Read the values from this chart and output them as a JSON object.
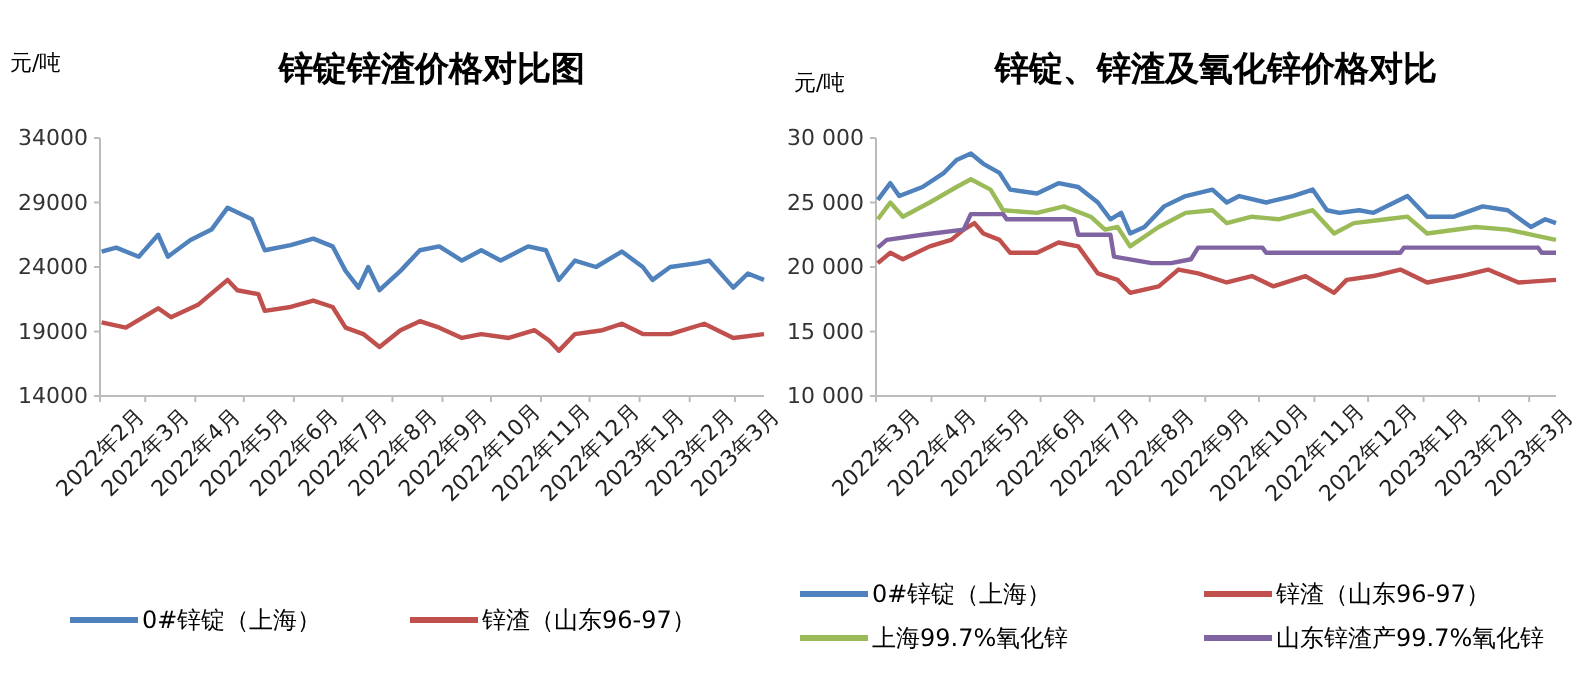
{
  "chart_data": [
    {
      "type": "line",
      "title": "锌锭锌渣价格对比图",
      "ylabel": "元/吨",
      "legend": "bottom",
      "ylim": [
        14000,
        34000
      ],
      "yticks": [
        14000,
        19000,
        24000,
        29000,
        34000
      ],
      "xlim": [
        "2022-02-01",
        "2023-03-19"
      ],
      "xticks": [
        {
          "value": "2022-02",
          "label": "2022年2月"
        },
        {
          "value": "2022-03",
          "label": "2022年3月"
        },
        {
          "value": "2022-04",
          "label": "2022年4月"
        },
        {
          "value": "2022-05",
          "label": "2022年5月"
        },
        {
          "value": "2022-06",
          "label": "2022年6月"
        },
        {
          "value": "2022-07",
          "label": "2022年7月"
        },
        {
          "value": "2022-08",
          "label": "2022年8月"
        },
        {
          "value": "2022-09",
          "label": "2022年9月"
        },
        {
          "value": "2022-10",
          "label": "2022年10月"
        },
        {
          "value": "2022-11",
          "label": "2022年11月"
        },
        {
          "value": "2022-12",
          "label": "2022年12月"
        },
        {
          "value": "2023-01",
          "label": "2023年1月"
        },
        {
          "value": "2023-02",
          "label": "2023年2月"
        },
        {
          "value": "2023-03",
          "label": "2023年3月"
        }
      ],
      "series": [
        {
          "name": "0#锌锭（上海）",
          "color": "#4f81bd",
          "x": [
            "2022-02-02",
            "2022-02-11",
            "2022-02-25",
            "2022-03-09",
            "2022-03-15",
            "2022-03-29",
            "2022-04-11",
            "2022-04-21",
            "2022-05-06",
            "2022-05-14",
            "2022-05-30",
            "2022-06-13",
            "2022-06-25",
            "2022-07-03",
            "2022-07-11",
            "2022-07-17",
            "2022-07-24",
            "2022-08-06",
            "2022-08-18",
            "2022-08-30",
            "2022-09-13",
            "2022-09-25",
            "2022-10-07",
            "2022-10-24",
            "2022-11-04",
            "2022-11-12",
            "2022-11-22",
            "2022-12-05",
            "2022-12-21",
            "2023-01-03",
            "2023-01-09",
            "2023-01-20",
            "2023-02-06",
            "2023-02-13",
            "2023-02-28",
            "2023-03-09",
            "2023-03-19"
          ],
          "values": [
            25200,
            25500,
            24800,
            26500,
            24800,
            26100,
            26900,
            28600,
            27700,
            25300,
            25700,
            26200,
            25600,
            23700,
            22400,
            24000,
            22200,
            23700,
            25300,
            25600,
            24500,
            25300,
            24500,
            25600,
            25300,
            23000,
            24500,
            24000,
            25200,
            24000,
            23000,
            24000,
            24300,
            24500,
            22400,
            23500,
            23000
          ]
        },
        {
          "name": "锌渣（山东96-97）",
          "color": "#c0504d",
          "x": [
            "2022-02-02",
            "2022-02-17",
            "2022-03-09",
            "2022-03-17",
            "2022-04-03",
            "2022-04-21",
            "2022-04-27",
            "2022-05-10",
            "2022-05-14",
            "2022-05-30",
            "2022-06-13",
            "2022-06-25",
            "2022-07-03",
            "2022-07-14",
            "2022-07-24",
            "2022-08-06",
            "2022-08-18",
            "2022-08-30",
            "2022-09-13",
            "2022-09-25",
            "2022-10-12",
            "2022-10-28",
            "2022-11-06",
            "2022-11-12",
            "2022-11-22",
            "2022-12-09",
            "2022-12-21",
            "2023-01-03",
            "2023-01-20",
            "2023-02-10",
            "2023-02-28",
            "2023-03-19"
          ],
          "values": [
            19700,
            19300,
            20800,
            20100,
            21100,
            23000,
            22200,
            21900,
            20600,
            20900,
            21400,
            20900,
            19300,
            18800,
            17800,
            19100,
            19800,
            19300,
            18500,
            18800,
            18500,
            19100,
            18300,
            17500,
            18800,
            19100,
            19600,
            18800,
            18800,
            19600,
            18500,
            18800
          ]
        }
      ]
    },
    {
      "type": "line",
      "title": "锌锭、锌渣及氧化锌价格对比",
      "ylabel": "元/吨",
      "legend": "bottom",
      "ylim": [
        10000,
        30000
      ],
      "yticks": [
        {
          "value": 10000,
          "label": "10 000"
        },
        {
          "value": 15000,
          "label": "15 000"
        },
        {
          "value": 20000,
          "label": "20 000"
        },
        {
          "value": 25000,
          "label": "25 000"
        },
        {
          "value": 30000,
          "label": "30 000"
        }
      ],
      "xlim": [
        "2022-03-01",
        "2023-03-16"
      ],
      "xticks": [
        {
          "value": "2022-03",
          "label": "2022年3月"
        },
        {
          "value": "2022-04",
          "label": "2022年4月"
        },
        {
          "value": "2022-05",
          "label": "2022年5月"
        },
        {
          "value": "2022-06",
          "label": "2022年6月"
        },
        {
          "value": "2022-07",
          "label": "2022年7月"
        },
        {
          "value": "2022-08",
          "label": "2022年8月"
        },
        {
          "value": "2022-09",
          "label": "2022年9月"
        },
        {
          "value": "2022-10",
          "label": "2022年10月"
        },
        {
          "value": "2022-11",
          "label": "2022年11月"
        },
        {
          "value": "2022-12",
          "label": "2022年12月"
        },
        {
          "value": "2023-01",
          "label": "2023年1月"
        },
        {
          "value": "2023-02",
          "label": "2023年2月"
        },
        {
          "value": "2023-03",
          "label": "2023年3月"
        }
      ],
      "series": [
        {
          "name": "0#锌锭（上海）",
          "color": "#4f81bd",
          "x": [
            "2022-03-02",
            "2022-03-09",
            "2022-03-14",
            "2022-03-27",
            "2022-04-08",
            "2022-04-15",
            "2022-04-23",
            "2022-04-30",
            "2022-05-09",
            "2022-05-15",
            "2022-05-30",
            "2022-06-11",
            "2022-06-22",
            "2022-07-03",
            "2022-07-10",
            "2022-07-16",
            "2022-07-21",
            "2022-07-29",
            "2022-08-09",
            "2022-08-21",
            "2022-09-05",
            "2022-09-13",
            "2022-09-20",
            "2022-10-05",
            "2022-10-20",
            "2022-10-31",
            "2022-11-08",
            "2022-11-15",
            "2022-11-26",
            "2022-12-04",
            "2022-12-23",
            "2023-01-03",
            "2023-01-18",
            "2023-02-03",
            "2023-02-17",
            "2023-03-02",
            "2023-03-10",
            "2023-03-16"
          ],
          "values": [
            25200,
            26500,
            25500,
            26200,
            27300,
            28300,
            28800,
            28000,
            27300,
            26000,
            25700,
            26500,
            26200,
            25000,
            23700,
            24200,
            22600,
            23100,
            24700,
            25500,
            26000,
            25000,
            25500,
            25000,
            25500,
            26000,
            24400,
            24200,
            24400,
            24200,
            25500,
            23900,
            23900,
            24700,
            24400,
            23100,
            23700,
            23400
          ]
        },
        {
          "name": "锌渣（山东96-97）",
          "color": "#c0504d",
          "x": [
            "2022-03-02",
            "2022-03-09",
            "2022-03-16",
            "2022-03-31",
            "2022-04-12",
            "2022-04-19",
            "2022-04-25",
            "2022-04-30",
            "2022-05-09",
            "2022-05-15",
            "2022-05-30",
            "2022-06-11",
            "2022-06-22",
            "2022-07-03",
            "2022-07-14",
            "2022-07-21",
            "2022-08-06",
            "2022-08-17",
            "2022-08-28",
            "2022-09-13",
            "2022-09-27",
            "2022-10-09",
            "2022-10-27",
            "2022-11-12",
            "2022-11-19",
            "2022-12-04",
            "2022-12-19",
            "2023-01-03",
            "2023-01-22",
            "2023-02-06",
            "2023-02-23",
            "2023-03-16"
          ],
          "values": [
            20300,
            21100,
            20600,
            21600,
            22100,
            22900,
            23400,
            22600,
            22100,
            21100,
            21100,
            21900,
            21600,
            19500,
            19000,
            18000,
            18500,
            19800,
            19500,
            18800,
            19300,
            18500,
            19300,
            18000,
            19000,
            19300,
            19800,
            18800,
            19300,
            19800,
            18800,
            19000
          ]
        },
        {
          "name": "上海99.7%氧化锌",
          "color": "#9bbb59",
          "x": [
            "2022-03-02",
            "2022-03-09",
            "2022-03-16",
            "2022-03-31",
            "2022-04-15",
            "2022-04-23",
            "2022-05-04",
            "2022-05-11",
            "2022-05-30",
            "2022-06-14",
            "2022-06-29",
            "2022-07-07",
            "2022-07-14",
            "2022-07-21",
            "2022-08-06",
            "2022-08-21",
            "2022-09-05",
            "2022-09-13",
            "2022-09-27",
            "2022-10-12",
            "2022-10-31",
            "2022-11-12",
            "2022-11-23",
            "2022-12-11",
            "2022-12-23",
            "2023-01-03",
            "2023-01-30",
            "2023-02-17",
            "2023-03-06",
            "2023-03-16"
          ],
          "values": [
            23700,
            25000,
            23900,
            25000,
            26200,
            26800,
            26000,
            24400,
            24200,
            24700,
            23900,
            22900,
            23100,
            21600,
            23100,
            24200,
            24400,
            23400,
            23900,
            23700,
            24400,
            22600,
            23400,
            23700,
            23900,
            22600,
            23100,
            22900,
            22400,
            22100
          ]
        },
        {
          "name": "山东锌渣产99.7%氧化锌",
          "color": "#8064a2",
          "x": [
            "2022-03-02",
            "2022-03-07",
            "2022-03-27",
            "2022-04-19",
            "2022-04-23",
            "2022-05-11",
            "2022-05-13",
            "2022-06-20",
            "2022-06-22",
            "2022-07-10",
            "2022-07-12",
            "2022-08-02",
            "2022-08-13",
            "2022-08-24",
            "2022-08-28",
            "2022-10-03",
            "2022-10-05",
            "2022-12-19",
            "2022-12-21",
            "2023-03-06",
            "2023-03-08",
            "2023-03-16"
          ],
          "values": [
            21500,
            22100,
            22500,
            22900,
            24100,
            24100,
            23700,
            23700,
            22500,
            22500,
            20800,
            20300,
            20300,
            20600,
            21500,
            21500,
            21100,
            21100,
            21500,
            21500,
            21100,
            21100
          ]
        }
      ]
    }
  ]
}
